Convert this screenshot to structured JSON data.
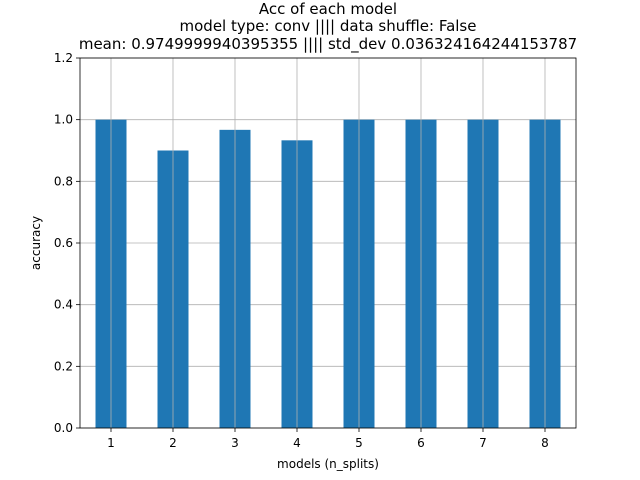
{
  "chart_data": {
    "type": "bar",
    "title_lines": [
      "Acc of each model",
      "model type: conv  ||||  data shuffle: False",
      "mean: 0.9749999940395355  ||||  std_dev 0.036324164244153787"
    ],
    "xlabel": "models (n_splits)",
    "ylabel": "accuracy",
    "categories": [
      "1",
      "2",
      "3",
      "4",
      "5",
      "6",
      "7",
      "8"
    ],
    "values": [
      1.0,
      0.9,
      0.967,
      0.933,
      1.0,
      1.0,
      1.0,
      1.0
    ],
    "ylim": [
      0,
      1.2
    ],
    "yticks": [
      0.0,
      0.2,
      0.4,
      0.6,
      0.8,
      1.0,
      1.2
    ],
    "ytick_labels": [
      "0.0",
      "0.2",
      "0.4",
      "0.6",
      "0.8",
      "1.0",
      "1.2"
    ],
    "grid": true,
    "bar_color": "#1f77b4",
    "grid_color": "#b0b0b0"
  }
}
